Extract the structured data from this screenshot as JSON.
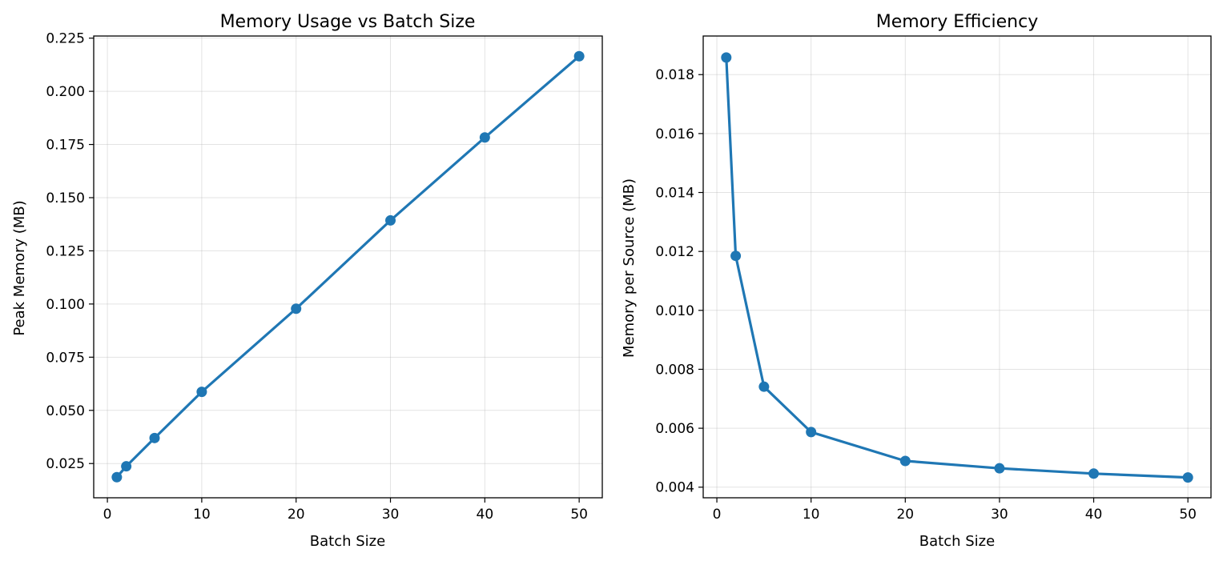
{
  "colors": {
    "series": "#1f77b4"
  },
  "chart_data": [
    {
      "type": "line",
      "title": "Memory Usage vs Batch Size",
      "xlabel": "Batch Size",
      "ylabel": "Peak Memory (MB)",
      "xlim": [
        -1.45,
        52.45
      ],
      "ylim": [
        0.0089,
        0.226
      ],
      "grid": true,
      "legend": "none",
      "x": [
        1,
        2,
        5,
        10,
        20,
        30,
        40,
        50
      ],
      "series": [
        {
          "values": [
            0.0186,
            0.0237,
            0.037,
            0.0587,
            0.0978,
            0.1393,
            0.1783,
            0.2165
          ]
        }
      ],
      "xticks": [
        {
          "value": 0,
          "label": "0"
        },
        {
          "value": 10,
          "label": "10"
        },
        {
          "value": 20,
          "label": "20"
        },
        {
          "value": 30,
          "label": "30"
        },
        {
          "value": 40,
          "label": "40"
        },
        {
          "value": 50,
          "label": "50"
        }
      ],
      "yticks": [
        {
          "value": 0.025,
          "label": "0.025"
        },
        {
          "value": 0.05,
          "label": "0.050"
        },
        {
          "value": 0.075,
          "label": "0.075"
        },
        {
          "value": 0.1,
          "label": "0.100"
        },
        {
          "value": 0.125,
          "label": "0.125"
        },
        {
          "value": 0.15,
          "label": "0.150"
        },
        {
          "value": 0.175,
          "label": "0.175"
        },
        {
          "value": 0.2,
          "label": "0.200"
        },
        {
          "value": 0.225,
          "label": "0.225"
        }
      ]
    },
    {
      "type": "line",
      "title": "Memory Efficiency",
      "xlabel": "Batch Size",
      "ylabel": "Memory per Source (MB)",
      "xlim": [
        -1.45,
        52.45
      ],
      "ylim": [
        0.00364,
        0.01931
      ],
      "grid": true,
      "legend": "none",
      "x": [
        1,
        2,
        5,
        10,
        20,
        30,
        40,
        50
      ],
      "series": [
        {
          "values": [
            0.01858,
            0.01185,
            0.00741,
            0.00587,
            0.00489,
            0.00464,
            0.00446,
            0.00433
          ]
        }
      ],
      "xticks": [
        {
          "value": 0,
          "label": "0"
        },
        {
          "value": 10,
          "label": "10"
        },
        {
          "value": 20,
          "label": "20"
        },
        {
          "value": 30,
          "label": "30"
        },
        {
          "value": 40,
          "label": "40"
        },
        {
          "value": 50,
          "label": "50"
        }
      ],
      "yticks": [
        {
          "value": 0.004,
          "label": "0.004"
        },
        {
          "value": 0.006,
          "label": "0.006"
        },
        {
          "value": 0.008,
          "label": "0.008"
        },
        {
          "value": 0.01,
          "label": "0.010"
        },
        {
          "value": 0.012,
          "label": "0.012"
        },
        {
          "value": 0.014,
          "label": "0.014"
        },
        {
          "value": 0.016,
          "label": "0.016"
        },
        {
          "value": 0.018,
          "label": "0.018"
        }
      ]
    }
  ]
}
